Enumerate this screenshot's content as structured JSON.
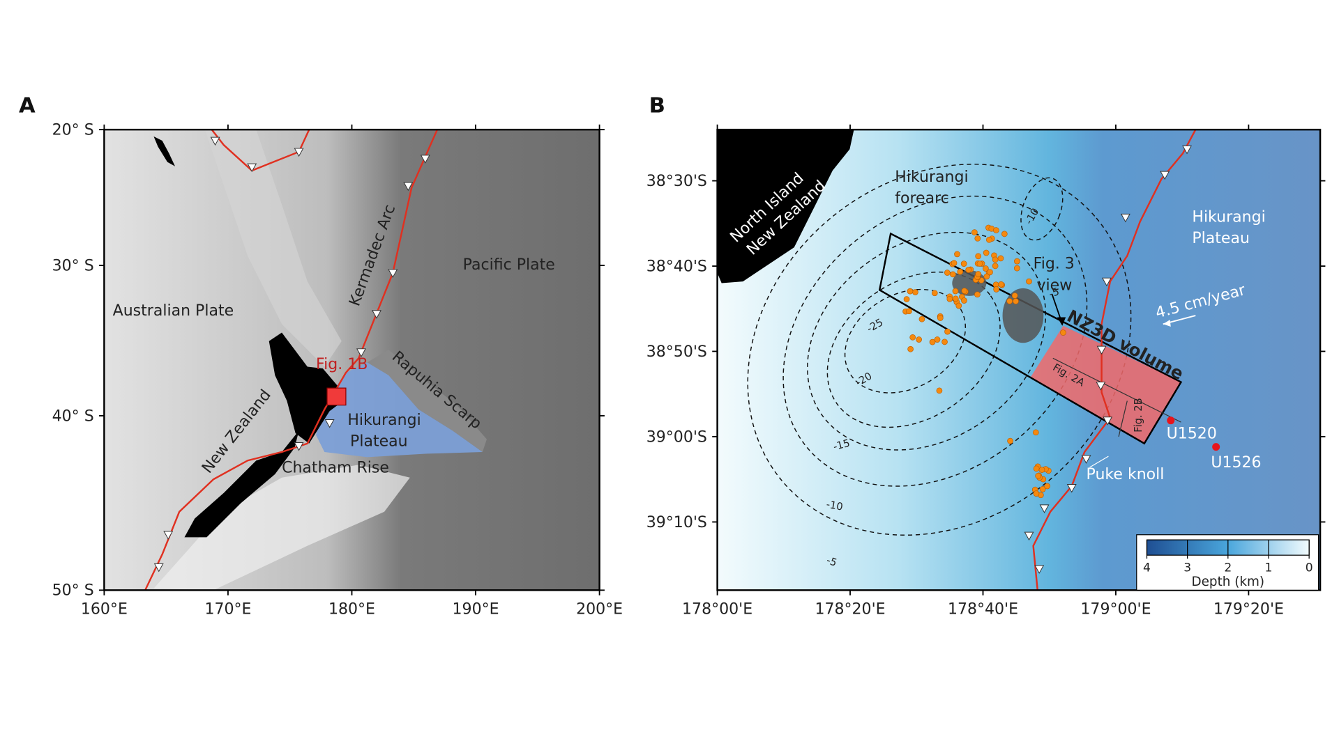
{
  "panel_a": {
    "label": "A",
    "projection": "mercator",
    "xlim": [
      160,
      200
    ],
    "ylim": [
      -50,
      -20
    ],
    "xticks": [
      {
        "value": 160,
        "label": "160°E"
      },
      {
        "value": 170,
        "label": "170°E"
      },
      {
        "value": 180,
        "label": "180°E"
      },
      {
        "value": 190,
        "label": "190°E"
      },
      {
        "value": 200,
        "label": "200°E"
      }
    ],
    "yticks": [
      {
        "value": -20,
        "label": "20° S"
      },
      {
        "value": -30,
        "label": "30° S"
      },
      {
        "value": -40,
        "label": "40° S"
      },
      {
        "value": -50,
        "label": "50° S"
      }
    ],
    "annotations": {
      "australian_plate": "Australian Plate",
      "pacific_plate": "Pacific Plate",
      "kermadec_arc": "Kermadec Arc",
      "fig_1b": "Fig. 1B",
      "rapuhia_scarp": "Rapuhia Scarp",
      "new_zealand": "New Zealand",
      "hikurangi_plateau": [
        "Hikurangi",
        "Plateau"
      ],
      "chatham_rise": "Chatham Rise"
    }
  },
  "panel_b": {
    "label": "B",
    "projection": "linear",
    "xlim": [
      178,
      179.513
    ],
    "ylim": [
      -39.3,
      -38.4
    ],
    "xticks": [
      {
        "value": 178,
        "label": "178°00'E"
      },
      {
        "value": 178.3333,
        "label": "178°20'E"
      },
      {
        "value": 178.6667,
        "label": "178°40'E"
      },
      {
        "value": 179,
        "label": "179°00'E"
      },
      {
        "value": 179.3333,
        "label": "179°20'E"
      }
    ],
    "yticks": [
      {
        "value": -38.5,
        "label": "38°30'S"
      },
      {
        "value": -38.6667,
        "label": "38°40'S"
      },
      {
        "value": -38.8333,
        "label": "38°50'S"
      },
      {
        "value": -39,
        "label": "39°00'S"
      },
      {
        "value": -39.1667,
        "label": "39°10'S"
      }
    ],
    "annotations": {
      "north_island": [
        "North Island",
        "New Zealand"
      ],
      "hikurangi_forearc": [
        "Hikurangi",
        "forearc"
      ],
      "fig_3_view": [
        "Fig. 3",
        "view"
      ],
      "nz3d_volume": "NZ3D volume",
      "fig_2a": "Fig. 2A",
      "fig_2b": "Fig. 2B",
      "hikurangi_plateau": [
        "Hikurangi",
        "Plateau"
      ],
      "plate_rate": "4.5 cm/year",
      "u1520": "U1520",
      "u1526": "U1526",
      "puke_knoll": "Puke knoll"
    },
    "contour_labels": [
      -10,
      -25,
      -20,
      -15,
      -10,
      -5,
      -5
    ],
    "colorbar": {
      "label": "Depth (km)",
      "lim": [
        4,
        0
      ],
      "ticks": [
        4,
        3,
        2,
        1,
        0
      ]
    }
  }
}
